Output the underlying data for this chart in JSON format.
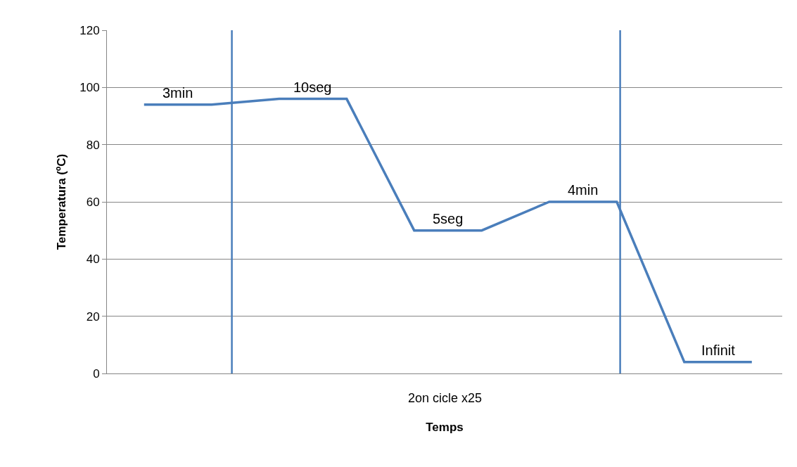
{
  "chart_data": {
    "type": "line",
    "xlabel": "Temps",
    "ylabel": "Temperatura (ºC)",
    "categories": [
      null,
      null,
      null,
      null,
      null,
      null,
      null,
      null,
      null,
      null
    ],
    "series": [
      {
        "color": "#4a7ebb",
        "values": [
          94,
          94,
          96,
          96,
          50,
          50,
          60,
          60,
          4,
          4
        ]
      }
    ],
    "ylim": [
      0,
      120
    ],
    "yticks": [
      0,
      20,
      40,
      60,
      80,
      100,
      120
    ],
    "tick_labels": "y",
    "grid": "y",
    "marker": "none",
    "line_style": "solid",
    "annotations": [
      {
        "text": "3min",
        "y": 94
      },
      {
        "text": "10seg",
        "y": 96
      },
      {
        "text": "5seg",
        "y": 50
      },
      {
        "text": "4min",
        "y": 60
      },
      {
        "text": "Infinit",
        "y": 4
      },
      "2on cicle x25"
    ]
  }
}
